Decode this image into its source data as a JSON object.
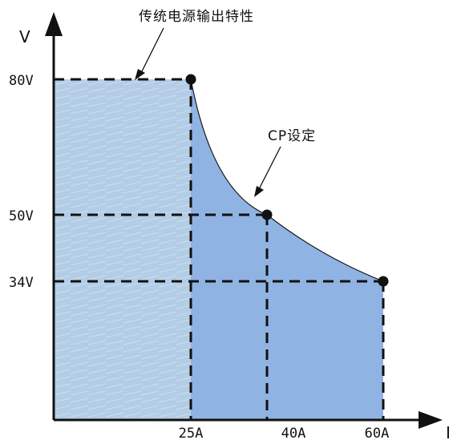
{
  "diagram": {
    "traditional_label": "传统电源输出特性",
    "cp_label": "CP设定",
    "v_axis_label": "V",
    "i_axis_label": "I",
    "y_ticks": [
      "80V",
      "50V",
      "34V"
    ],
    "x_ticks": [
      "25A",
      "40A",
      "60A"
    ],
    "colors": {
      "traditional_region": "#b3cde6",
      "cp_region": "#8fb3e3",
      "lines": "#111111"
    },
    "points": [
      {
        "current": 25,
        "voltage": 80
      },
      {
        "current": 40,
        "voltage": 50
      },
      {
        "current": 60,
        "voltage": 34
      }
    ]
  }
}
